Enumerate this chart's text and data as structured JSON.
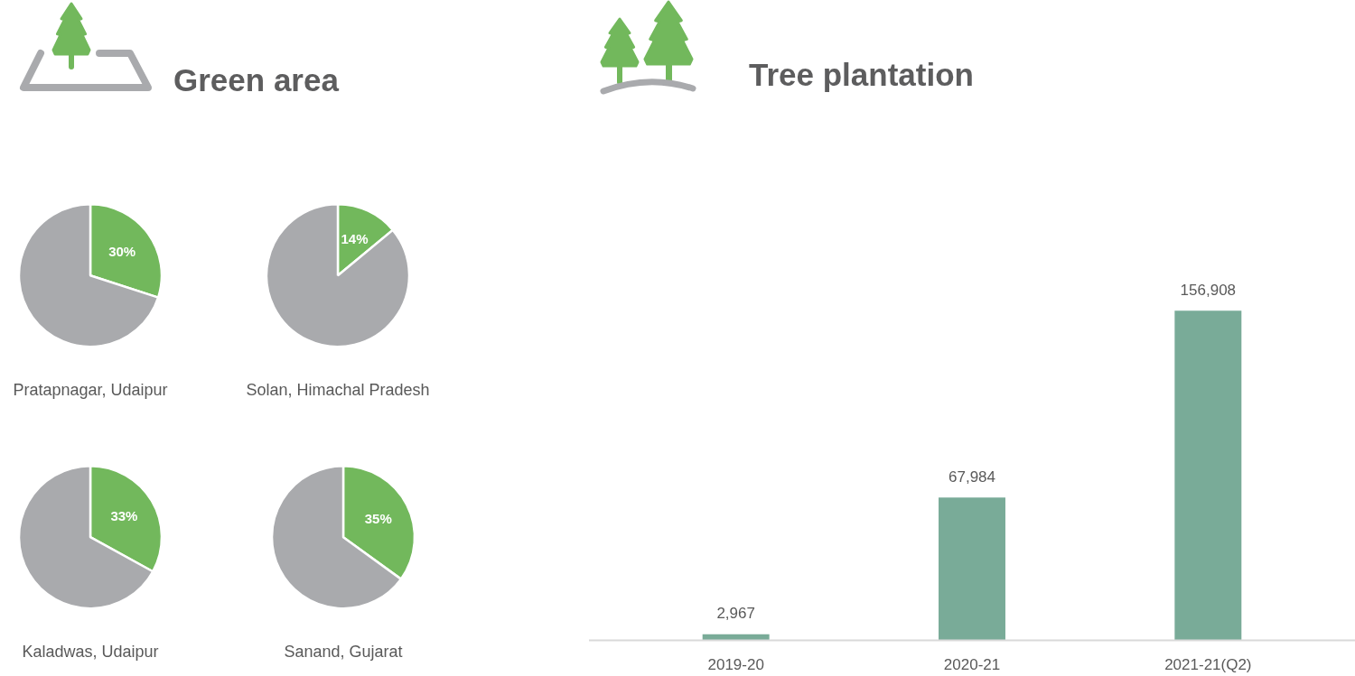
{
  "chart_data": [
    {
      "type": "other",
      "title": "Green area"
    },
    {
      "type": "pie",
      "title": "Pratapnagar, Udaipur",
      "categories": [
        null,
        null
      ],
      "values": [
        30,
        70
      ],
      "colors": [
        "#72b85c",
        "#a9aaad"
      ],
      "value_labels": [
        "30%",
        null
      ]
    },
    {
      "type": "pie",
      "title": "Solan, Himachal Pradesh",
      "categories": [
        null,
        null
      ],
      "values": [
        14,
        86
      ],
      "colors": [
        "#72b85c",
        "#a9aaad"
      ],
      "value_labels": [
        "14%",
        null
      ]
    },
    {
      "type": "pie",
      "title": "Kaladwas, Udaipur",
      "categories": [
        null,
        null
      ],
      "values": [
        33,
        67
      ],
      "colors": [
        "#72b85c",
        "#a9aaad"
      ],
      "value_labels": [
        "33%",
        null
      ]
    },
    {
      "type": "pie",
      "title": "Sanand, Gujarat",
      "categories": [
        null,
        null
      ],
      "values": [
        35,
        65
      ],
      "colors": [
        "#72b85c",
        "#a9aaad"
      ],
      "value_labels": [
        "35%",
        null
      ]
    },
    {
      "type": "bar",
      "title": "Tree plantation",
      "categories": [
        "2019-20",
        "2020-21",
        "2021-21(Q2)"
      ],
      "values": [
        2967,
        67984,
        156908
      ],
      "color": "#79ab98",
      "value_labels": [
        "2,967",
        "67,984",
        "156,908"
      ]
    }
  ]
}
